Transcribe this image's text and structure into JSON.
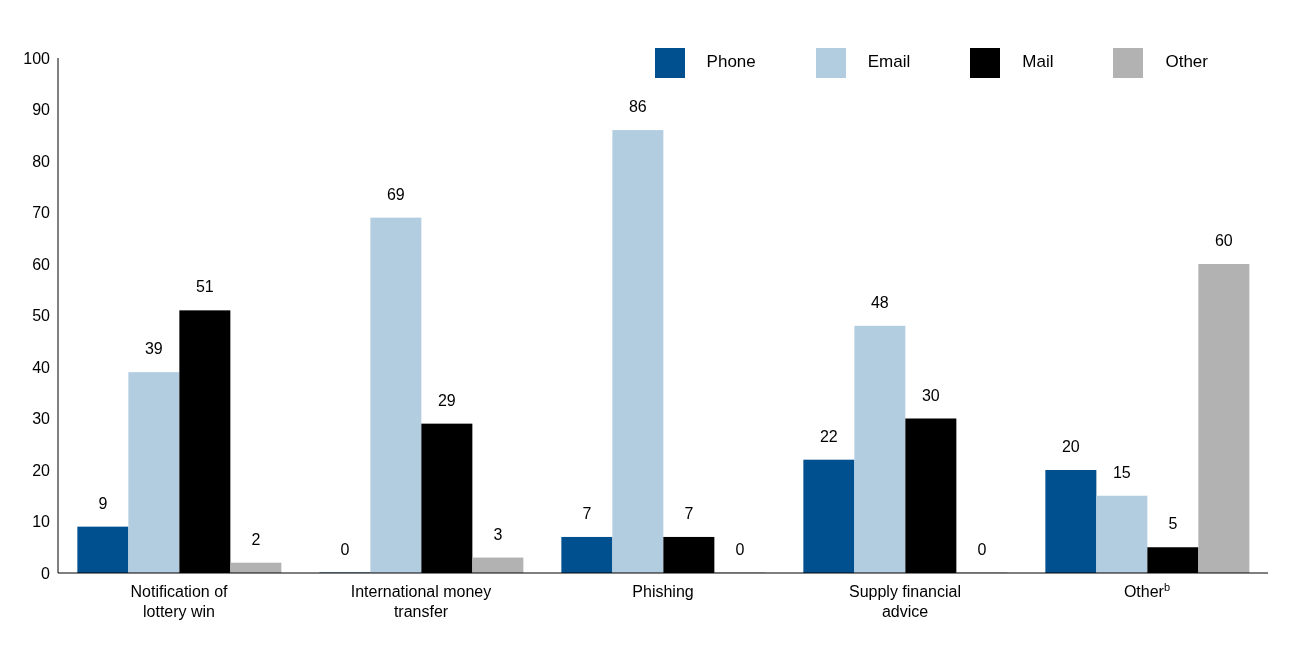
{
  "chart_data": {
    "type": "bar",
    "categories": [
      "Notification of lottery win",
      "International money transfer",
      "Phishing",
      "Supply financial advice",
      "Other$^{b}$"
    ],
    "series": [
      {
        "name": "Phone",
        "color": "#00508f",
        "values": [
          9,
          0,
          7,
          22,
          20
        ]
      },
      {
        "name": "Email",
        "color": "#b3cde0",
        "values": [
          39,
          69,
          86,
          48,
          15
        ]
      },
      {
        "name": "Mail",
        "color": "#000000",
        "values": [
          51,
          29,
          7,
          30,
          5
        ]
      },
      {
        "name": "Other",
        "color": "#b2b2b2",
        "values": [
          2,
          3,
          0,
          0,
          60
        ]
      }
    ],
    "ylim": [
      0,
      100
    ],
    "yticks": [
      0,
      10,
      20,
      30,
      40,
      50,
      60,
      70,
      80,
      90,
      100
    ],
    "grid": false,
    "legend": "top right",
    "data_labels": true
  }
}
